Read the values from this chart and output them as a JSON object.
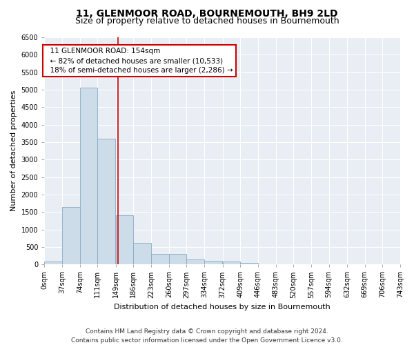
{
  "title": "11, GLENMOOR ROAD, BOURNEMOUTH, BH9 2LD",
  "subtitle": "Size of property relative to detached houses in Bournemouth",
  "xlabel": "Distribution of detached houses by size in Bournemouth",
  "ylabel": "Number of detached properties",
  "bar_values": [
    75,
    1650,
    5050,
    3600,
    1400,
    610,
    295,
    295,
    145,
    110,
    75,
    40,
    0,
    0,
    0,
    0,
    0,
    0,
    0,
    0
  ],
  "bin_edges": [
    0,
    37,
    74,
    111,
    149,
    186,
    223,
    260,
    297,
    334,
    372,
    409,
    446,
    483,
    520,
    557,
    594,
    632,
    669,
    706,
    743
  ],
  "bin_labels": [
    "0sqm",
    "37sqm",
    "74sqm",
    "111sqm",
    "149sqm",
    "186sqm",
    "223sqm",
    "260sqm",
    "297sqm",
    "334sqm",
    "372sqm",
    "409sqm",
    "446sqm",
    "483sqm",
    "520sqm",
    "557sqm",
    "594sqm",
    "632sqm",
    "669sqm",
    "706sqm",
    "743sqm"
  ],
  "bar_color": "#ccdce8",
  "bar_edge_color": "#88aac4",
  "property_line_x": 154,
  "property_line_color": "#cc0000",
  "annotation_text": "  11 GLENMOOR ROAD: 154sqm\n  ← 82% of detached houses are smaller (10,533)\n  18% of semi-detached houses are larger (2,286) →",
  "annotation_box_facecolor": "white",
  "annotation_box_edgecolor": "#cc0000",
  "ylim": [
    0,
    6500
  ],
  "yticks": [
    0,
    500,
    1000,
    1500,
    2000,
    2500,
    3000,
    3500,
    4000,
    4500,
    5000,
    5500,
    6000,
    6500
  ],
  "footer_line1": "Contains HM Land Registry data © Crown copyright and database right 2024.",
  "footer_line2": "Contains public sector information licensed under the Open Government Licence v3.0.",
  "background_color": "#ffffff",
  "plot_bg_color": "#e8eef4",
  "grid_color": "#ffffff",
  "title_fontsize": 10,
  "subtitle_fontsize": 9,
  "axis_label_fontsize": 8,
  "tick_fontsize": 7,
  "footer_fontsize": 6.5,
  "annotation_fontsize": 7.5
}
